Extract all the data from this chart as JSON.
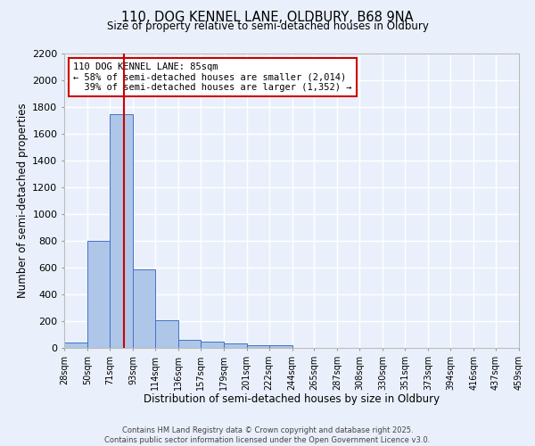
{
  "title1": "110, DOG KENNEL LANE, OLDBURY, B68 9NA",
  "title2": "Size of property relative to semi-detached houses in Oldbury",
  "xlabel": "Distribution of semi-detached houses by size in Oldbury",
  "ylabel": "Number of semi-detached properties",
  "bin_labels": [
    "28sqm",
    "50sqm",
    "71sqm",
    "93sqm",
    "114sqm",
    "136sqm",
    "157sqm",
    "179sqm",
    "201sqm",
    "222sqm",
    "244sqm",
    "265sqm",
    "287sqm",
    "308sqm",
    "330sqm",
    "351sqm",
    "373sqm",
    "394sqm",
    "416sqm",
    "437sqm",
    "459sqm"
  ],
  "bin_edges": [
    28,
    50,
    71,
    93,
    114,
    136,
    157,
    179,
    201,
    222,
    244,
    265,
    287,
    308,
    330,
    351,
    373,
    394,
    416,
    437,
    459
  ],
  "bar_heights": [
    40,
    800,
    1750,
    590,
    205,
    60,
    45,
    35,
    20,
    20,
    0,
    0,
    0,
    0,
    0,
    0,
    0,
    0,
    0,
    0
  ],
  "bar_color": "#aec6e8",
  "bar_edge_color": "#4472c4",
  "property_size": 85,
  "vline_color": "#cc0000",
  "annotation_line1": "110 DOG KENNEL LANE: 85sqm",
  "annotation_line2": "← 58% of semi-detached houses are smaller (2,014)",
  "annotation_line3": "  39% of semi-detached houses are larger (1,352) →",
  "annotation_box_color": "#ffffff",
  "annotation_border_color": "#cc0000",
  "ylim": [
    0,
    2200
  ],
  "yticks": [
    0,
    200,
    400,
    600,
    800,
    1000,
    1200,
    1400,
    1600,
    1800,
    2000,
    2200
  ],
  "background_color": "#eaf0fb",
  "grid_color": "#ffffff",
  "footer_line1": "Contains HM Land Registry data © Crown copyright and database right 2025.",
  "footer_line2": "Contains public sector information licensed under the Open Government Licence v3.0."
}
